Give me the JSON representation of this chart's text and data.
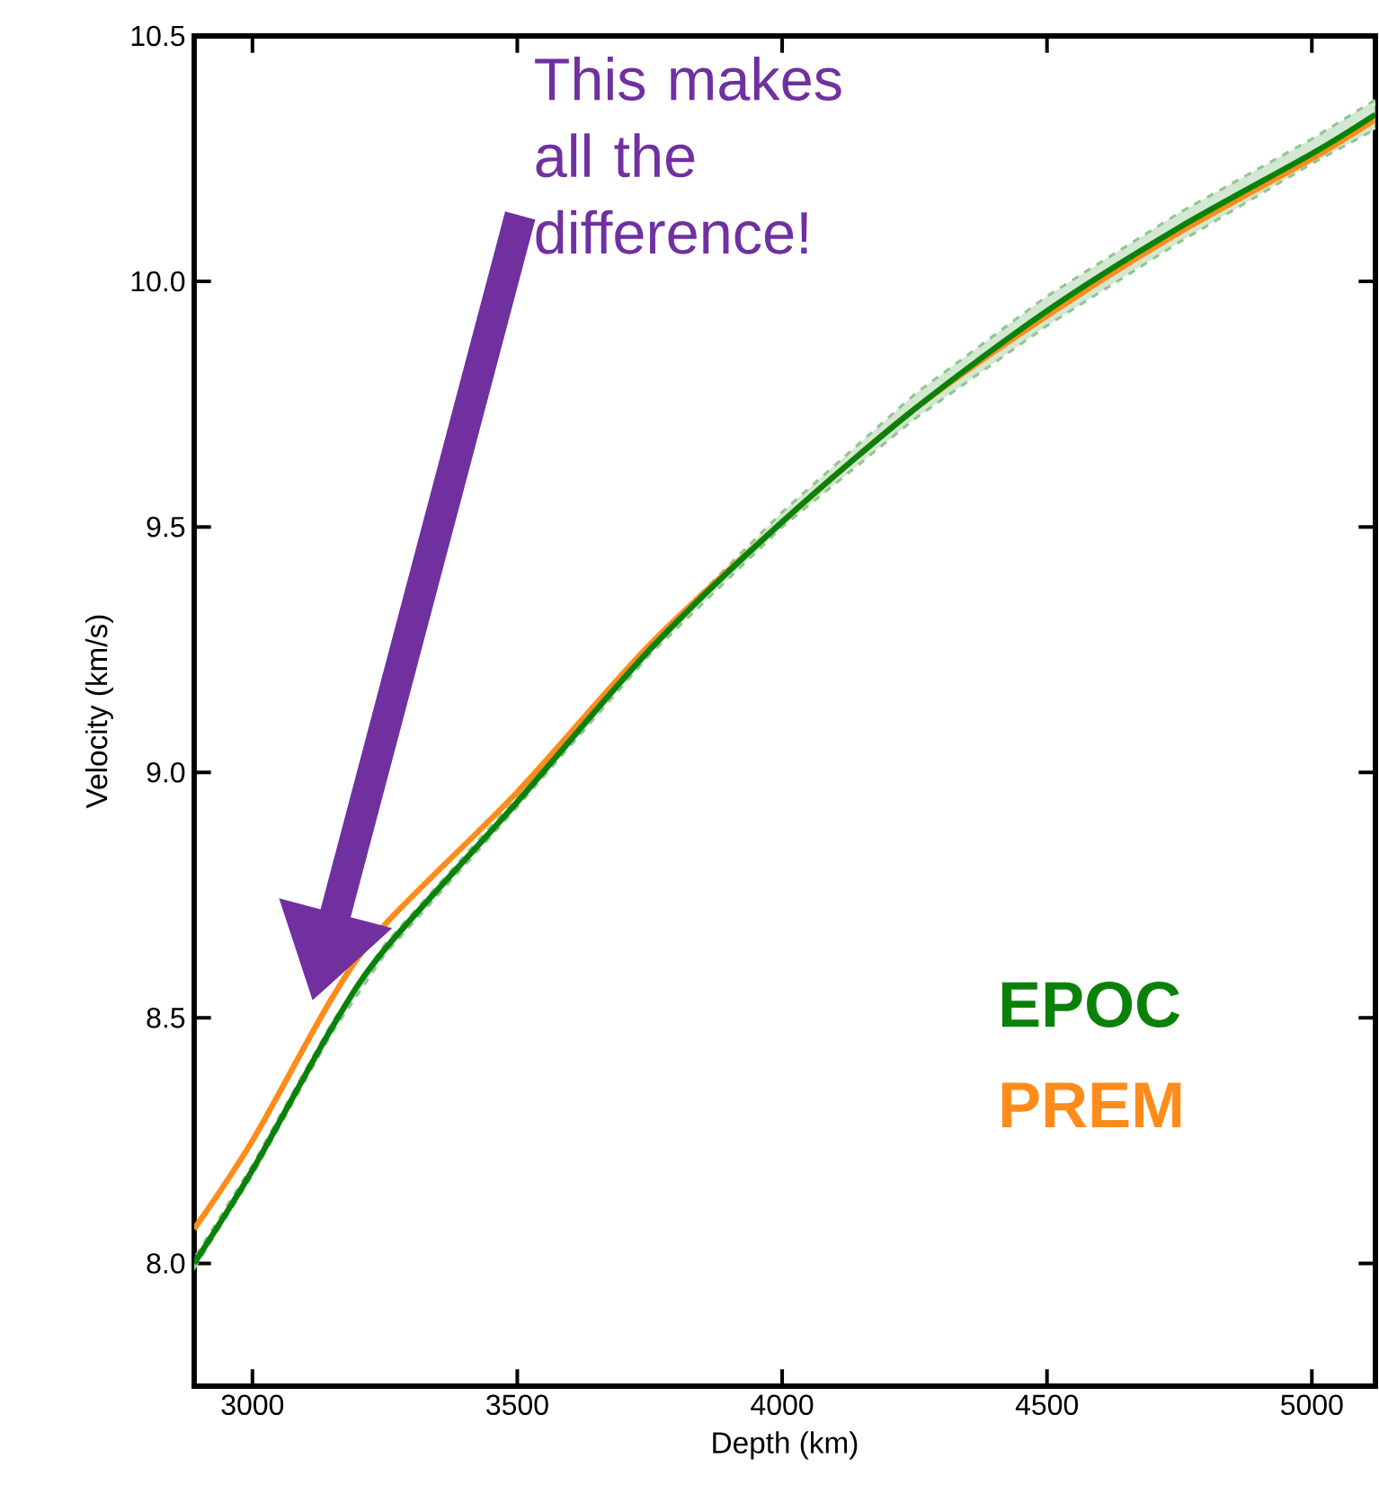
{
  "chart_data": {
    "type": "line",
    "xlabel": "Depth (km)",
    "ylabel": "Velocity (km/s)",
    "x": [
      2890,
      3000,
      3150,
      3250,
      3500,
      3750,
      4000,
      4250,
      4500,
      4750,
      5000,
      5120
    ],
    "series": [
      {
        "name": "EPOC",
        "color": "#0a820a",
        "values": [
          8.0,
          8.19,
          8.48,
          8.64,
          8.94,
          9.25,
          9.51,
          9.74,
          9.94,
          10.11,
          10.26,
          10.34
        ],
        "lower": [
          7.99,
          8.18,
          8.47,
          8.63,
          8.93,
          9.24,
          9.5,
          9.72,
          9.91,
          10.08,
          10.24,
          10.31
        ],
        "upper": [
          8.01,
          8.2,
          8.49,
          8.65,
          8.95,
          9.26,
          9.53,
          9.77,
          9.97,
          10.14,
          10.29,
          10.37
        ]
      },
      {
        "name": "PREM",
        "color": "#ff8c1a",
        "values": [
          8.07,
          8.25,
          8.54,
          8.69,
          8.96,
          9.26,
          9.51,
          9.74,
          9.93,
          10.1,
          10.25,
          10.33
        ]
      }
    ],
    "xlim": [
      2890,
      5120
    ],
    "ylim": [
      7.75,
      10.5
    ],
    "xticks": [
      3000,
      3500,
      4000,
      4500,
      5000
    ],
    "yticks": [
      {
        "value": 8.0,
        "label": "8.0"
      },
      {
        "value": 8.5,
        "label": "8.5"
      },
      {
        "value": 9.0,
        "label": "9.0"
      },
      {
        "value": 9.5,
        "label": "9.5"
      },
      {
        "value": 10.0,
        "label": "10.0"
      },
      {
        "value": 10.5,
        "label": "10.5"
      }
    ],
    "grid": false,
    "legend": "bottom right",
    "marker": "none",
    "line_style": "solid",
    "annotations": [
      "This makes all the difference!"
    ]
  }
}
